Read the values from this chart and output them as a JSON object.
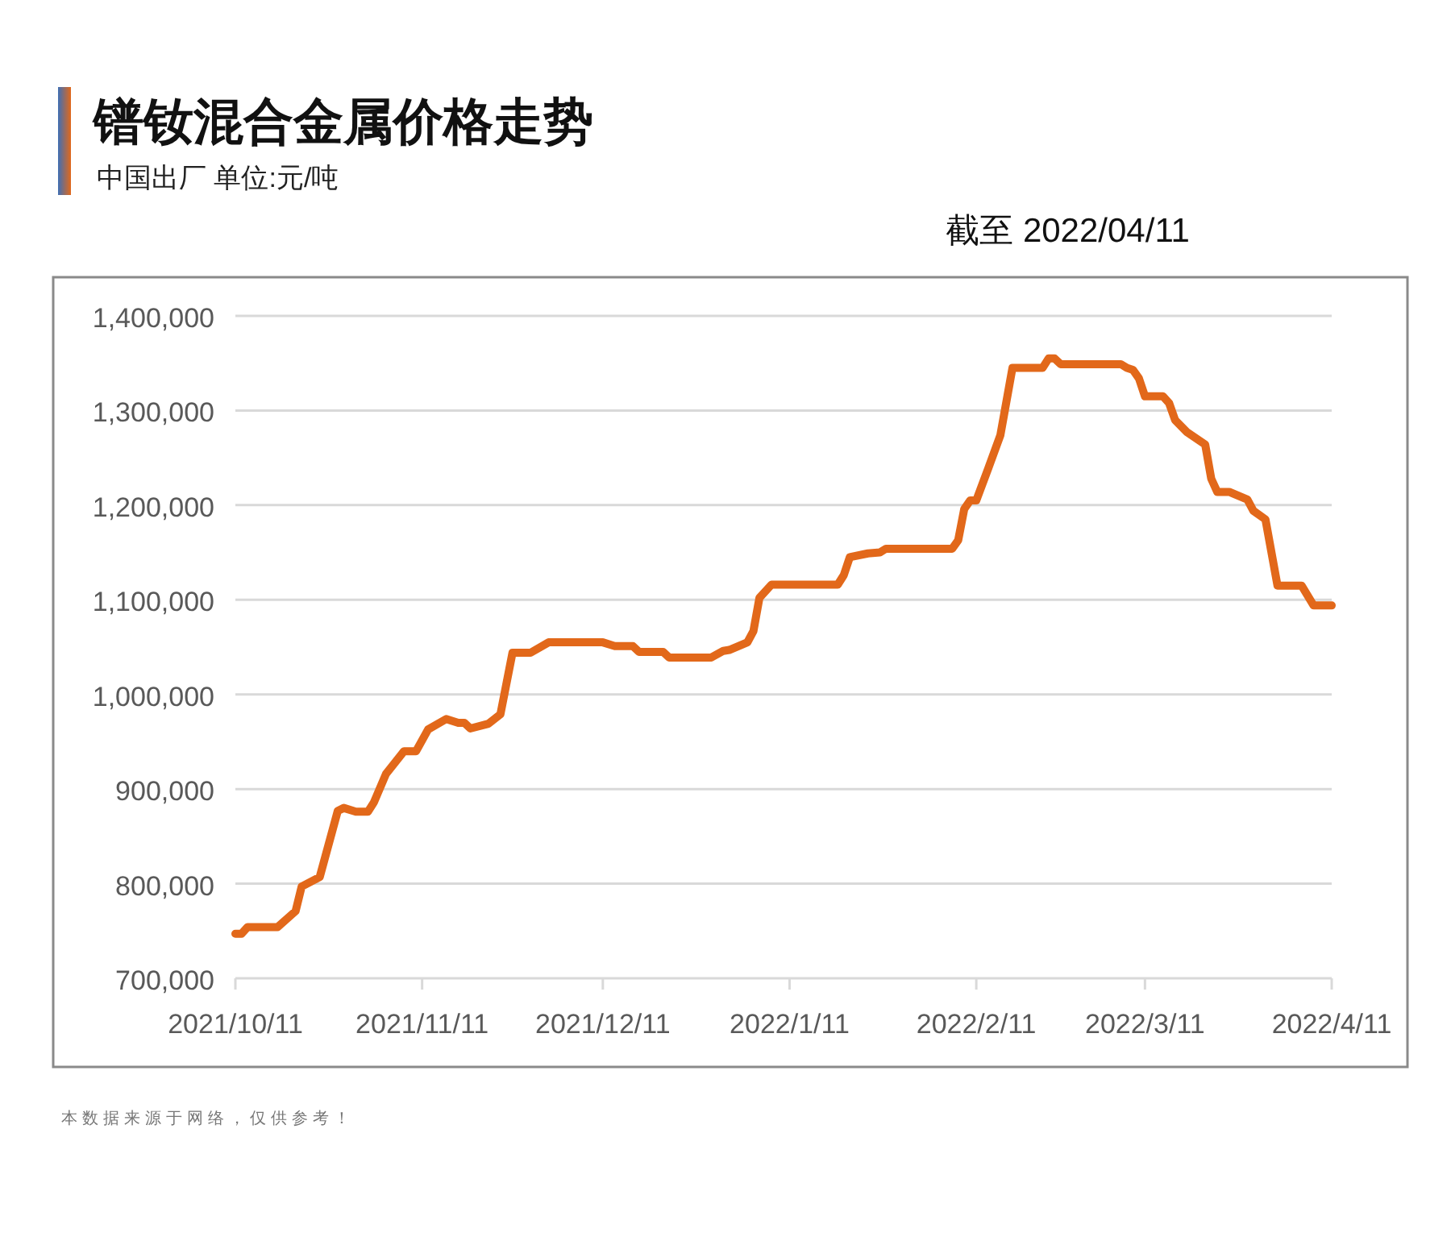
{
  "chart_data": {
    "type": "line",
    "title": "镨钕混合金属价格走势",
    "subtitle": "中国出厂  单位:元/吨",
    "annotations": [
      "截至 2022/04/11",
      "本数据来源于网络，仅供参考！"
    ],
    "x": [
      "2021-10-11",
      "2021-10-12",
      "2021-10-13",
      "2021-10-18",
      "2021-10-21",
      "2021-10-22",
      "2021-10-25",
      "2021-10-28",
      "2021-10-29",
      "2021-10-31",
      "2021-11-02",
      "2021-11-03",
      "2021-11-05",
      "2021-11-08",
      "2021-11-10",
      "2021-11-12",
      "2021-11-15",
      "2021-11-17",
      "2021-11-18",
      "2021-11-19",
      "2021-11-22",
      "2021-11-24",
      "2021-11-26",
      "2021-11-29",
      "2021-12-02",
      "2021-12-11",
      "2021-12-13",
      "2021-12-16",
      "2021-12-17",
      "2021-12-21",
      "2021-12-22",
      "2021-12-29",
      "2021-12-31",
      "2022-01-01",
      "2022-01-04",
      "2022-01-05",
      "2022-01-06",
      "2022-01-08",
      "2022-01-19",
      "2022-01-20",
      "2022-01-21",
      "2022-01-24",
      "2022-01-26",
      "2022-01-27",
      "2022-02-07",
      "2022-02-08",
      "2022-02-09",
      "2022-02-10",
      "2022-02-11",
      "2022-02-13",
      "2022-02-15",
      "2022-02-17",
      "2022-02-22",
      "2022-02-23",
      "2022-02-24",
      "2022-02-25",
      "2022-03-07",
      "2022-03-08",
      "2022-03-09",
      "2022-03-10",
      "2022-03-11",
      "2022-03-14",
      "2022-03-15",
      "2022-03-16",
      "2022-03-18",
      "2022-03-21",
      "2022-03-22",
      "2022-03-23",
      "2022-03-25",
      "2022-03-28",
      "2022-03-29",
      "2022-03-31",
      "2022-04-02",
      "2022-04-06",
      "2022-04-08",
      "2022-04-11"
    ],
    "series": [
      {
        "color": "#e2681a",
        "values": [
          747000,
          747000,
          754000,
          754000,
          771000,
          797000,
          807000,
          877000,
          880000,
          876000,
          876000,
          886000,
          916000,
          940000,
          940000,
          963000,
          974000,
          970000,
          970000,
          964000,
          969000,
          979000,
          1044000,
          1044000,
          1055000,
          1055000,
          1051000,
          1051000,
          1045000,
          1045000,
          1039000,
          1039000,
          1046000,
          1047000,
          1055000,
          1067000,
          1102000,
          1116000,
          1116000,
          1126000,
          1145000,
          1149000,
          1150000,
          1154000,
          1154000,
          1163000,
          1196000,
          1205000,
          1205000,
          1239000,
          1274000,
          1345000,
          1345000,
          1355000,
          1355000,
          1349000,
          1349000,
          1345000,
          1343000,
          1334000,
          1315000,
          1315000,
          1308000,
          1290000,
          1277000,
          1264000,
          1228000,
          1214000,
          1214000,
          1206000,
          1194000,
          1185000,
          1115000,
          1115000,
          1094000,
          1094000
        ]
      }
    ],
    "xlim": [
      "2021-10-11",
      "2022-04-11"
    ],
    "xticks": [
      {
        "value": "2021-10-11",
        "label": "2021/10/11"
      },
      {
        "value": "2021-11-11",
        "label": "2021/11/11"
      },
      {
        "value": "2021-12-11",
        "label": "2021/12/11"
      },
      {
        "value": "2022-01-11",
        "label": "2022/1/11"
      },
      {
        "value": "2022-02-11",
        "label": "2022/2/11"
      },
      {
        "value": "2022-03-11",
        "label": "2022/3/11"
      },
      {
        "value": "2022-04-11",
        "label": "2022/4/11"
      }
    ],
    "ylim": [
      700000,
      1400000
    ],
    "yticks": [
      {
        "value": 700000,
        "label": "700,000"
      },
      {
        "value": 800000,
        "label": "800,000"
      },
      {
        "value": 900000,
        "label": "900,000"
      },
      {
        "value": 1000000,
        "label": "1,000,000"
      },
      {
        "value": 1100000,
        "label": "1,100,000"
      },
      {
        "value": 1200000,
        "label": "1,200,000"
      },
      {
        "value": 1300000,
        "label": "1,300,000"
      },
      {
        "value": 1400000,
        "label": "1,400,000"
      }
    ],
    "grid": "y"
  }
}
